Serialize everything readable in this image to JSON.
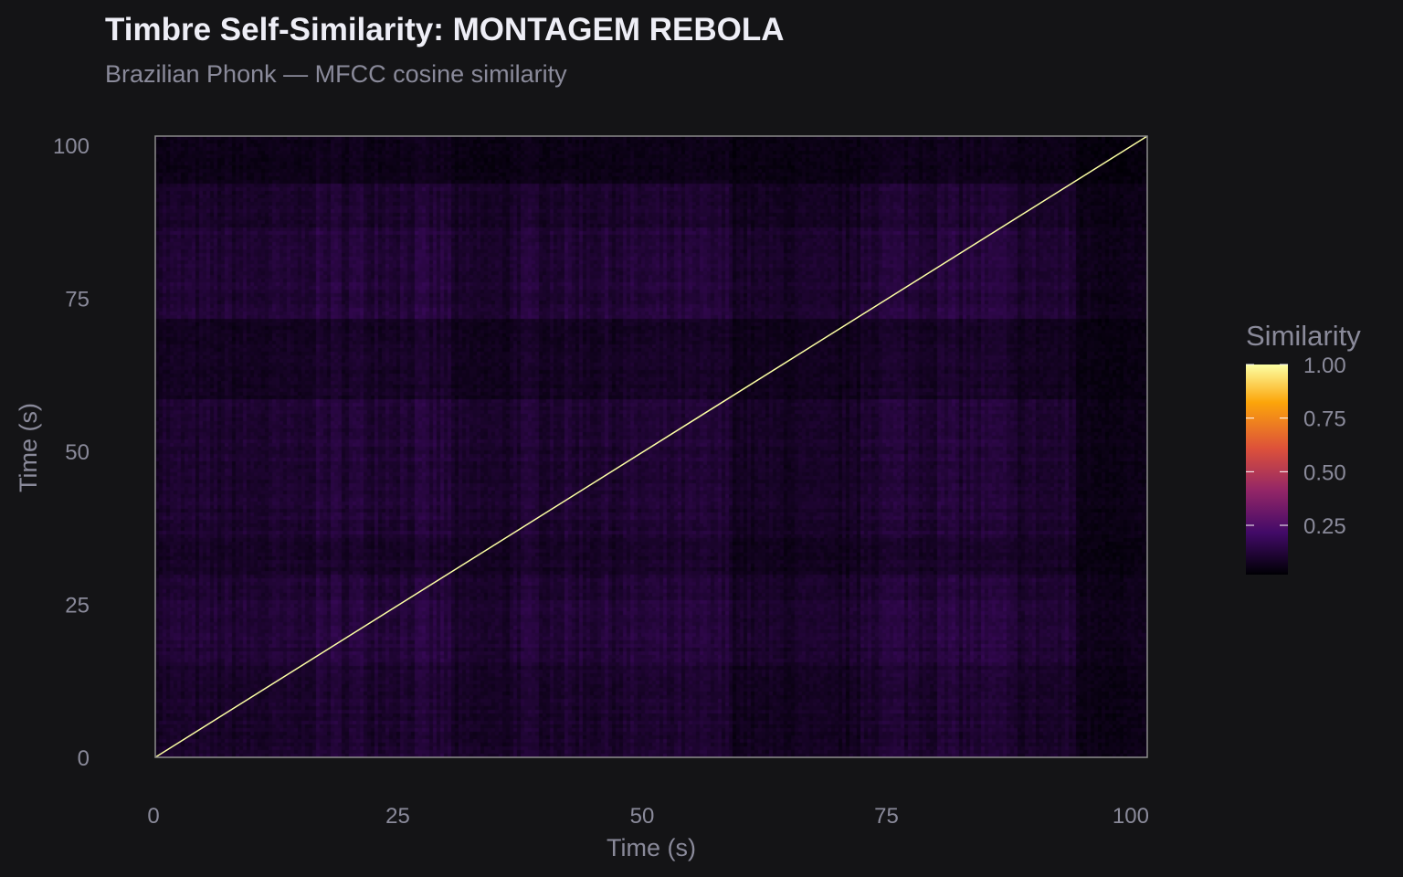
{
  "title": "Timbre Self-Similarity: MONTAGEM REBOLA",
  "subtitle": "Brazilian Phonk — MFCC cosine similarity",
  "colors": {
    "background": "#141416",
    "panel_border": "#8c8c8c",
    "diagonal": "#fcffa4"
  },
  "chart_data": {
    "type": "heatmap",
    "title": "Timbre Self-Similarity: MONTAGEM REBOLA",
    "subtitle": "Brazilian Phonk — MFCC cosine similarity",
    "xlabel": "Time (s)",
    "ylabel": "Time (s)",
    "xlim": [
      0,
      101.5
    ],
    "ylim": [
      0,
      101.5
    ],
    "xticks": [
      0,
      25,
      50,
      75,
      100
    ],
    "yticks": [
      0,
      25,
      50,
      75,
      100
    ],
    "grid": false,
    "colorscale": "inferno",
    "colorscale_stops": [
      "#000004",
      "#420a68",
      "#932667",
      "#dd513a",
      "#fca50a",
      "#fcffa4"
    ],
    "value_range": [
      0.02,
      1.0
    ],
    "diagonal_value": 1.0,
    "legend": {
      "title": "Similarity",
      "position": "right",
      "ticks": [
        1.0,
        0.75,
        0.5,
        0.25
      ],
      "tick_labels": [
        "1.00",
        "0.75",
        "0.50",
        "0.25"
      ]
    },
    "segment_edges": [
      0,
      15,
      30,
      36,
      59,
      72,
      87,
      94,
      101.5
    ],
    "segment_levels": [
      0.08,
      0.12,
      0.06,
      0.1,
      0.05,
      0.12,
      0.08,
      0.02
    ],
    "blocks_note_free": true,
    "blocks": [
      [
        0.08,
        0.1,
        0.07,
        0.09,
        0.06,
        0.1,
        0.08,
        0.04
      ],
      [
        0.1,
        0.12,
        0.08,
        0.11,
        0.08,
        0.12,
        0.1,
        0.05
      ],
      [
        0.07,
        0.08,
        0.06,
        0.08,
        0.05,
        0.08,
        0.07,
        0.03
      ],
      [
        0.09,
        0.11,
        0.08,
        0.1,
        0.07,
        0.11,
        0.09,
        0.04
      ],
      [
        0.06,
        0.08,
        0.05,
        0.07,
        0.05,
        0.08,
        0.06,
        0.03
      ],
      [
        0.1,
        0.12,
        0.08,
        0.11,
        0.08,
        0.12,
        0.1,
        0.05
      ],
      [
        0.08,
        0.1,
        0.07,
        0.09,
        0.06,
        0.1,
        0.08,
        0.04
      ],
      [
        0.04,
        0.05,
        0.03,
        0.04,
        0.03,
        0.05,
        0.04,
        0.02
      ]
    ]
  }
}
